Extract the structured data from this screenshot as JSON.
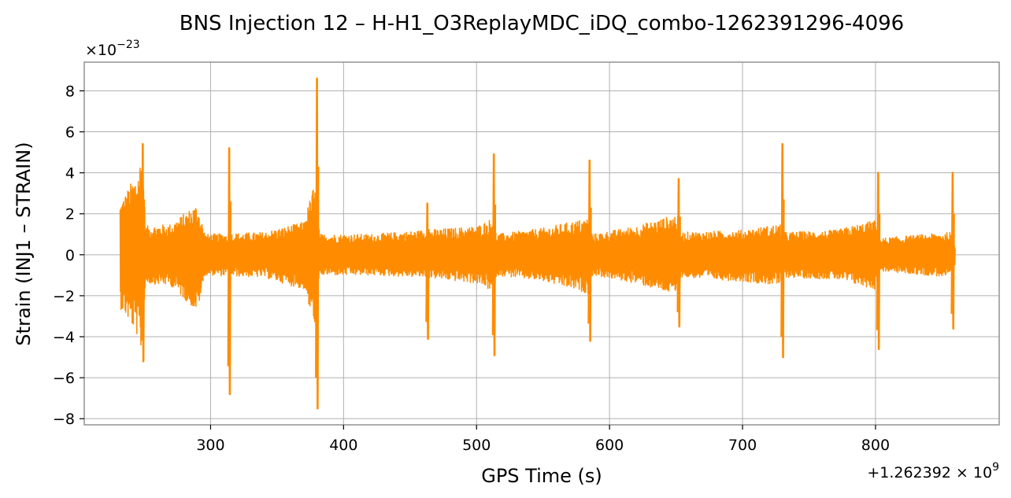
{
  "chart_data": {
    "type": "line",
    "title": "BNS Injection 12 – H-H1_O3ReplayMDC_iDQ_combo-1262391296-4096",
    "xlabel": "GPS Time (s)",
    "ylabel": "Strain (INJ1 – STRAIN)",
    "x_offset_label": "+1.262392 × 10",
    "x_offset_exponent": "9",
    "y_scale_label": "×10",
    "y_scale_exponent": "−23",
    "xlim": [
      205,
      893
    ],
    "ylim": [
      -8.3,
      9.4
    ],
    "x_ticks": [
      {
        "value": 300,
        "label": "300"
      },
      {
        "value": 400,
        "label": "400"
      },
      {
        "value": 500,
        "label": "500"
      },
      {
        "value": 600,
        "label": "600"
      },
      {
        "value": 700,
        "label": "700"
      },
      {
        "value": 800,
        "label": "800"
      }
    ],
    "y_ticks": [
      {
        "value": 8,
        "label": "8"
      },
      {
        "value": 6,
        "label": "6"
      },
      {
        "value": 4,
        "label": "4"
      },
      {
        "value": 2,
        "label": "2"
      },
      {
        "value": 0,
        "label": "0"
      },
      {
        "value": -2,
        "label": "−2"
      },
      {
        "value": -4,
        "label": "−4"
      },
      {
        "value": -6,
        "label": "−6"
      },
      {
        "value": -8,
        "label": "−8"
      }
    ],
    "grid": true,
    "series": [
      {
        "color": "#ff8c00",
        "x_start": 232,
        "x_end": 860,
        "envelope": [
          {
            "x": 232,
            "upper": 2.6,
            "lower": -2.6
          },
          {
            "x": 236,
            "upper": 3.0,
            "lower": -3.0
          },
          {
            "x": 240,
            "upper": 3.5,
            "lower": -3.4
          },
          {
            "x": 245,
            "upper": 4.0,
            "lower": -4.0
          },
          {
            "x": 249,
            "upper": 5.3,
            "lower": -5.1
          },
          {
            "x": 251,
            "upper": 1.4,
            "lower": -1.4
          },
          {
            "x": 270,
            "upper": 1.5,
            "lower": -1.5
          },
          {
            "x": 290,
            "upper": 2.5,
            "lower": -2.8
          },
          {
            "x": 296,
            "upper": 1.0,
            "lower": -1.0
          },
          {
            "x": 340,
            "upper": 1.1,
            "lower": -1.1
          },
          {
            "x": 370,
            "upper": 1.6,
            "lower": -1.7
          },
          {
            "x": 378,
            "upper": 3.5,
            "lower": -3.5
          },
          {
            "x": 382,
            "upper": 1.0,
            "lower": -1.0
          },
          {
            "x": 420,
            "upper": 1.0,
            "lower": -1.0
          },
          {
            "x": 460,
            "upper": 1.2,
            "lower": -1.1
          },
          {
            "x": 500,
            "upper": 1.4,
            "lower": -1.4
          },
          {
            "x": 512,
            "upper": 1.8,
            "lower": -1.8
          },
          {
            "x": 515,
            "upper": 1.0,
            "lower": -1.0
          },
          {
            "x": 550,
            "upper": 1.3,
            "lower": -1.3
          },
          {
            "x": 584,
            "upper": 1.8,
            "lower": -1.9
          },
          {
            "x": 587,
            "upper": 1.0,
            "lower": -1.0
          },
          {
            "x": 620,
            "upper": 1.4,
            "lower": -1.4
          },
          {
            "x": 651,
            "upper": 2.0,
            "lower": -2.0
          },
          {
            "x": 654,
            "upper": 1.1,
            "lower": -1.1
          },
          {
            "x": 700,
            "upper": 1.2,
            "lower": -1.3
          },
          {
            "x": 728,
            "upper": 1.5,
            "lower": -1.5
          },
          {
            "x": 731,
            "upper": 1.1,
            "lower": -1.1
          },
          {
            "x": 770,
            "upper": 1.2,
            "lower": -1.2
          },
          {
            "x": 800,
            "upper": 1.7,
            "lower": -1.7
          },
          {
            "x": 803,
            "upper": 0.8,
            "lower": -0.8
          },
          {
            "x": 856,
            "upper": 1.1,
            "lower": -1.1
          },
          {
            "x": 860,
            "upper": 0.4,
            "lower": -0.5
          }
        ],
        "glitches": [
          {
            "x": 249,
            "max": 5.4,
            "min": -5.2
          },
          {
            "x": 314,
            "max": 5.2,
            "min": -6.8
          },
          {
            "x": 380,
            "max": 8.6,
            "min": -7.5
          },
          {
            "x": 463,
            "max": 2.5,
            "min": -4.1
          },
          {
            "x": 513,
            "max": 4.9,
            "min": -4.9
          },
          {
            "x": 585,
            "max": 4.6,
            "min": -4.2
          },
          {
            "x": 652,
            "max": 3.7,
            "min": -3.5
          },
          {
            "x": 730,
            "max": 5.4,
            "min": -5.0
          },
          {
            "x": 802,
            "max": 4.0,
            "min": -4.6
          },
          {
            "x": 858,
            "max": 4.0,
            "min": -3.6
          }
        ]
      }
    ]
  }
}
